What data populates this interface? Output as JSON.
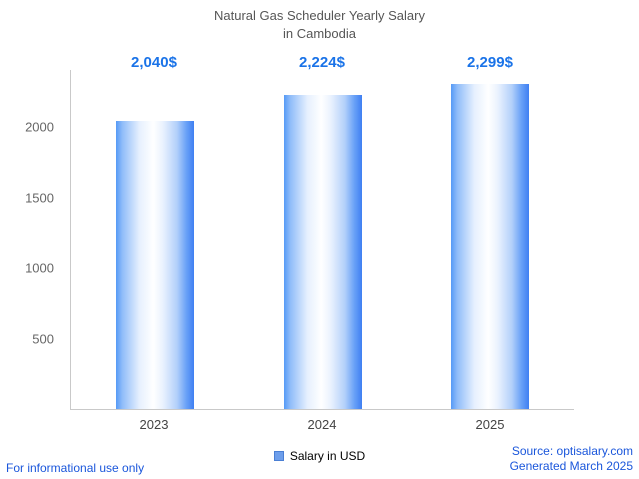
{
  "title": {
    "line1": "Natural Gas Scheduler Yearly Salary",
    "line2": "in Cambodia"
  },
  "chart_data": {
    "type": "bar",
    "title": "Natural Gas Scheduler Yearly Salary in Cambodia",
    "categories": [
      "2023",
      "2024",
      "2025"
    ],
    "values": [
      2040,
      2224,
      2299
    ],
    "value_labels": [
      "2,040$",
      "2,224$",
      "2,299$"
    ],
    "xlabel": "",
    "ylabel": "",
    "ylim": [
      0,
      2400
    ],
    "yticks": [
      500,
      1000,
      1500,
      2000
    ],
    "grid": false,
    "legend_position": "bottom",
    "legend": [
      {
        "label": "Salary in USD",
        "color": "#6d9eeb"
      }
    ]
  },
  "footer": {
    "disclaimer": "For informational use only",
    "source": "Source: optisalary.com",
    "generated": "Generated March 2025"
  },
  "colors": {
    "value_label": "#1a73e8",
    "footer_text": "#1a56db",
    "bar_main": "#4285f4",
    "axis": "#c9c9c9",
    "title_text": "#565656",
    "tick_label": "#666666"
  }
}
